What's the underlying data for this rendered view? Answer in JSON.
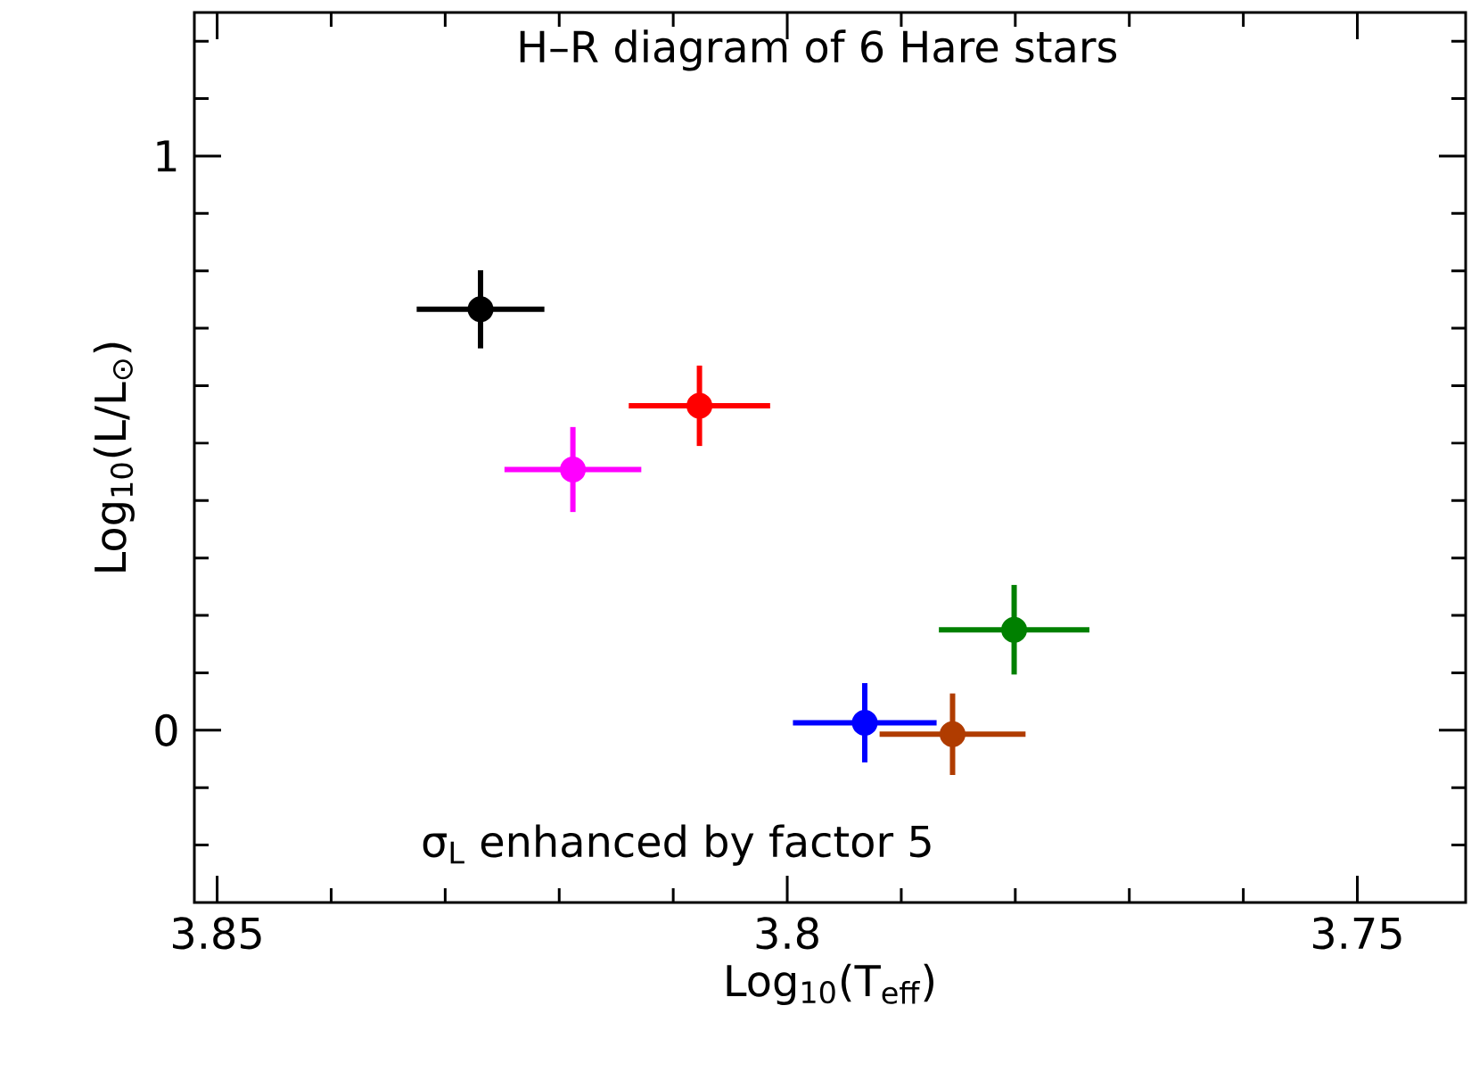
{
  "chart_data": {
    "type": "scatter",
    "title": "H–R diagram of 6 Hare stars",
    "xlabel": "Log$_{10}$(T$_{eff}$)",
    "ylabel": "Log$_{10}$(L/L$_{⊙}$)",
    "annotations": [
      "σ$_{L}$ enhanced by factor 5"
    ],
    "marker": "circle",
    "grid": false,
    "legend": false,
    "xlim": [
      3.852,
      3.7405
    ],
    "ylim": [
      -0.3,
      1.25
    ],
    "xticks": [
      3.85,
      {
        "value": 3.84,
        "label": null
      },
      {
        "value": 3.83,
        "label": null
      },
      {
        "value": 3.82,
        "label": null
      },
      {
        "value": 3.81,
        "label": null
      },
      3.8,
      {
        "value": 3.79,
        "label": null
      },
      {
        "value": 3.78,
        "label": null
      },
      {
        "value": 3.77,
        "label": null
      },
      {
        "value": 3.76,
        "label": null
      },
      3.75
    ],
    "yticks": [
      {
        "value": -0.2,
        "label": null
      },
      {
        "value": -0.1,
        "label": null
      },
      0,
      {
        "value": 0.1,
        "label": null
      },
      {
        "value": 0.2,
        "label": null
      },
      {
        "value": 0.3,
        "label": null
      },
      {
        "value": 0.4,
        "label": null
      },
      {
        "value": 0.5,
        "label": null
      },
      {
        "value": 0.6,
        "label": null
      },
      {
        "value": 0.7,
        "label": null
      },
      {
        "value": 0.8,
        "label": null
      },
      {
        "value": 0.9,
        "label": null
      },
      1,
      {
        "value": 1.1,
        "label": null
      },
      {
        "value": 1.2,
        "label": null
      }
    ],
    "series": [
      {
        "color": "#000000",
        "x": [
          3.8269
        ],
        "values": [
          0.733
        ],
        "xerrors": [
          0.0056
        ],
        "errors": [
          0.068
        ]
      },
      {
        "color": "#ff00ff",
        "x": [
          3.8188
        ],
        "values": [
          0.454
        ],
        "xerrors": [
          0.006
        ],
        "errors": [
          0.074
        ]
      },
      {
        "color": "#ff0000",
        "x": [
          3.8077
        ],
        "values": [
          0.565
        ],
        "xerrors": [
          0.0062
        ],
        "errors": [
          0.07
        ]
      },
      {
        "color": "#0000ff",
        "x": [
          3.7932
        ],
        "values": [
          0.013
        ],
        "xerrors": [
          0.0063
        ],
        "errors": [
          0.069
        ]
      },
      {
        "color": "#b03c00",
        "x": [
          3.7855
        ],
        "values": [
          -0.007
        ],
        "xerrors": [
          0.0064
        ],
        "errors": [
          0.071
        ]
      },
      {
        "color": "#008000",
        "x": [
          3.7801
        ],
        "values": [
          0.175
        ],
        "xerrors": [
          0.0066
        ],
        "errors": [
          0.078
        ]
      }
    ]
  }
}
